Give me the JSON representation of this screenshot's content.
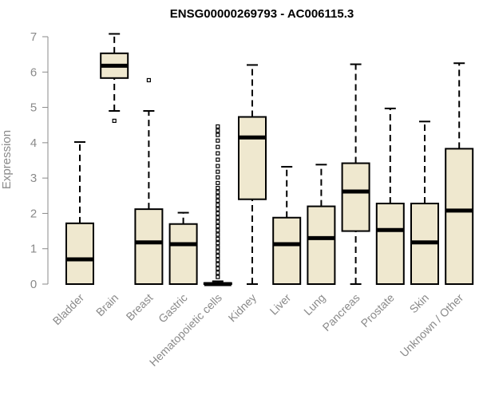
{
  "chart_data": {
    "type": "box",
    "title": "ENSG00000269793 - AC006115.3",
    "xlabel": "",
    "ylabel": "Expression",
    "ylim": [
      0,
      7
    ],
    "yticks": [
      0,
      1,
      2,
      3,
      4,
      5,
      6,
      7
    ],
    "grid": false,
    "box_fill": "#efe8cf",
    "box_stroke": "#000000",
    "categories": [
      "Bladder",
      "Brain",
      "Breast",
      "Gastric",
      "Hematopoietic cells",
      "Kidney",
      "Liver",
      "Lung",
      "Pancreas",
      "Prostate",
      "Skin",
      "Unknown / Other"
    ],
    "boxes": [
      {
        "min": 0,
        "q1": 0,
        "median": 0.7,
        "q3": 1.72,
        "max": 4.02,
        "outliers": []
      },
      {
        "min": 4.9,
        "q1": 5.83,
        "median": 6.18,
        "q3": 6.53,
        "max": 7.08,
        "outliers": [
          4.62
        ]
      },
      {
        "min": 0,
        "q1": 0,
        "median": 1.18,
        "q3": 2.12,
        "max": 4.9,
        "outliers": [
          5.77
        ]
      },
      {
        "min": 0,
        "q1": 0,
        "median": 1.13,
        "q3": 1.7,
        "max": 2.02,
        "outliers": []
      },
      {
        "min": 0,
        "q1": 0,
        "median": 0,
        "q3": 0.03,
        "max": 0.08,
        "outliers": [
          0.2,
          0.32,
          0.44,
          0.56,
          0.68,
          0.8,
          0.92,
          1.04,
          1.16,
          1.28,
          1.4,
          1.52,
          1.64,
          1.76,
          1.88,
          2.0,
          2.12,
          2.24,
          2.36,
          2.48,
          2.6,
          2.72,
          2.86,
          3.02,
          3.18,
          3.34,
          3.52,
          3.7,
          3.88,
          4.06,
          4.22,
          4.34,
          4.46
        ]
      },
      {
        "min": 0,
        "q1": 2.4,
        "median": 4.15,
        "q3": 4.73,
        "max": 6.2,
        "outliers": []
      },
      {
        "min": 0,
        "q1": 0,
        "median": 1.13,
        "q3": 1.88,
        "max": 3.32,
        "outliers": []
      },
      {
        "min": 0,
        "q1": 0,
        "median": 1.3,
        "q3": 2.2,
        "max": 3.38,
        "outliers": []
      },
      {
        "min": 0,
        "q1": 1.5,
        "median": 2.62,
        "q3": 3.42,
        "max": 6.22,
        "outliers": []
      },
      {
        "min": 0,
        "q1": 0,
        "median": 1.53,
        "q3": 2.28,
        "max": 4.97,
        "outliers": []
      },
      {
        "min": 0,
        "q1": 0,
        "median": 1.18,
        "q3": 2.28,
        "max": 4.6,
        "outliers": []
      },
      {
        "min": 0,
        "q1": 0,
        "median": 2.08,
        "q3": 3.83,
        "max": 6.25,
        "outliers": []
      }
    ]
  }
}
